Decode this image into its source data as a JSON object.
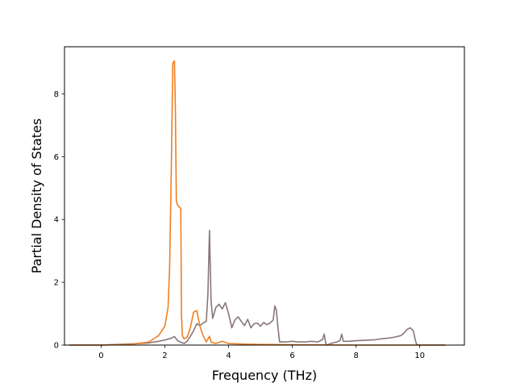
{
  "chart_data": {
    "type": "line",
    "title": "",
    "xlabel": "Frequency (THz)",
    "ylabel": "Partial Density of States",
    "xlim": [
      -1.15,
      11.4
    ],
    "ylim": [
      0,
      9.5
    ],
    "xticks": [
      0,
      2,
      4,
      6,
      8,
      10
    ],
    "yticks": [
      0,
      2,
      4,
      6,
      8
    ],
    "grid": false,
    "legend": "none",
    "series": [
      {
        "color": "#897678",
        "x": [
          -1.0,
          0.0,
          0.5,
          1.0,
          1.5,
          1.8,
          2.0,
          2.2,
          2.3,
          2.4,
          2.5,
          2.6,
          2.7,
          2.8,
          2.9,
          3.0,
          3.1,
          3.2,
          3.3,
          3.35,
          3.4,
          3.45,
          3.5,
          3.6,
          3.7,
          3.8,
          3.9,
          4.0,
          4.1,
          4.2,
          4.3,
          4.4,
          4.5,
          4.6,
          4.7,
          4.8,
          4.9,
          5.0,
          5.1,
          5.2,
          5.3,
          5.4,
          5.45,
          5.5,
          5.55,
          5.6,
          5.8,
          6.0,
          6.2,
          6.4,
          6.6,
          6.8,
          6.95,
          7.0,
          7.05,
          7.1,
          7.2,
          7.4,
          7.5,
          7.55,
          7.6,
          7.8,
          8.0,
          8.2,
          8.4,
          8.6,
          8.8,
          9.0,
          9.2,
          9.4,
          9.5,
          9.6,
          9.7,
          9.8,
          9.85,
          9.9,
          10.0,
          10.5,
          10.8
        ],
        "y": [
          0.0,
          0.0,
          0.02,
          0.04,
          0.07,
          0.12,
          0.16,
          0.22,
          0.27,
          0.14,
          0.09,
          0.05,
          0.12,
          0.28,
          0.45,
          0.68,
          0.62,
          0.7,
          0.76,
          1.6,
          3.65,
          1.4,
          0.85,
          1.2,
          1.3,
          1.15,
          1.35,
          1.0,
          0.55,
          0.8,
          0.9,
          0.75,
          0.62,
          0.82,
          0.55,
          0.68,
          0.7,
          0.6,
          0.72,
          0.65,
          0.7,
          0.8,
          1.25,
          1.1,
          0.55,
          0.1,
          0.1,
          0.12,
          0.1,
          0.1,
          0.12,
          0.1,
          0.18,
          0.35,
          0.05,
          0.0,
          0.05,
          0.1,
          0.15,
          0.35,
          0.12,
          0.12,
          0.14,
          0.15,
          0.16,
          0.17,
          0.2,
          0.22,
          0.25,
          0.3,
          0.38,
          0.5,
          0.55,
          0.45,
          0.2,
          0.02,
          0.0,
          0.0,
          0.0
        ]
      },
      {
        "color": "#ee7f22",
        "x": [
          -1.0,
          0.0,
          0.5,
          1.0,
          1.5,
          1.8,
          2.0,
          2.1,
          2.15,
          2.2,
          2.25,
          2.28,
          2.3,
          2.33,
          2.36,
          2.4,
          2.45,
          2.5,
          2.52,
          2.55,
          2.6,
          2.7,
          2.8,
          2.9,
          3.0,
          3.1,
          3.2,
          3.3,
          3.4,
          3.45,
          3.5,
          3.6,
          3.8,
          4.0,
          4.5,
          5.0,
          6.0,
          8.0,
          10.0,
          10.8
        ],
        "y": [
          0.0,
          0.0,
          0.01,
          0.03,
          0.1,
          0.3,
          0.6,
          1.2,
          2.5,
          5.5,
          8.98,
          9.02,
          9.05,
          7.5,
          4.6,
          4.45,
          4.4,
          4.35,
          1.0,
          0.3,
          0.2,
          0.25,
          0.55,
          1.05,
          1.1,
          0.6,
          0.3,
          0.1,
          0.28,
          0.1,
          0.08,
          0.05,
          0.12,
          0.05,
          0.03,
          0.02,
          0.01,
          0.0,
          0.0,
          0.0
        ]
      }
    ]
  }
}
